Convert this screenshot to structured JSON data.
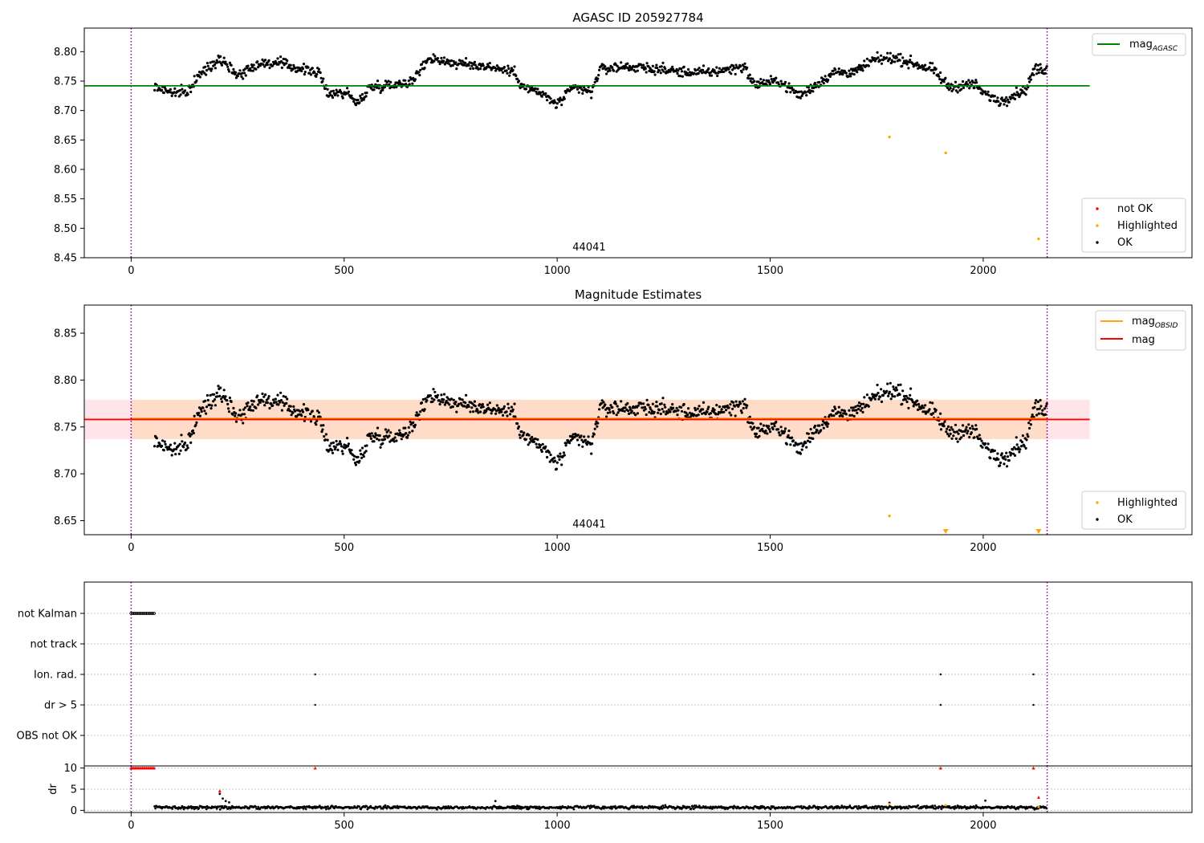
{
  "colors": {
    "ok": "#000000",
    "highlighted": "#ffa500",
    "not_ok": "#ff0000",
    "agasc_line": "#008000",
    "mag_line": "#ff0000",
    "obsid_line": "#ffa500",
    "obsid_band": "#ffdac2",
    "mag_band": "#ffe1e6",
    "obsid_boundary": "#800080",
    "grid": "#b0b0b0"
  },
  "chart_data": [
    {
      "id": "top",
      "type": "scatter",
      "title": "AGASC ID 205927784",
      "xlim": [
        -110,
        2490
      ],
      "ylim": [
        8.45,
        8.84
      ],
      "xticks": [
        0,
        500,
        1000,
        1500,
        2000
      ],
      "yticks": [
        8.45,
        8.5,
        8.55,
        8.6,
        8.65,
        8.7,
        8.75,
        8.8
      ],
      "ytick_labels": [
        "8.45",
        "8.50",
        "8.55",
        "8.60",
        "8.65",
        "8.70",
        "8.75",
        "8.80"
      ],
      "obsid_boundaries": [
        0,
        2150
      ],
      "obsid_label": {
        "text": "44041",
        "x": 1075
      },
      "hlines": [
        {
          "name": "mag_agasc",
          "y": 8.742,
          "x": [
            -110,
            2250
          ],
          "color": "#008000"
        }
      ],
      "legend_top": {
        "position": "upper right",
        "entries": [
          {
            "main": "mag",
            "sub": "AGASC",
            "color": "#008000",
            "kind": "line"
          }
        ]
      },
      "legend_bottom": {
        "position": "lower right",
        "entries": [
          {
            "label": "not OK",
            "color": "#ff0000",
            "kind": "point"
          },
          {
            "label": "Highlighted",
            "color": "#ffa500",
            "kind": "point"
          },
          {
            "label": "OK",
            "color": "#000000",
            "kind": "point"
          }
        ]
      },
      "highlighted_points": [
        [
          1780,
          8.655
        ],
        [
          1912,
          8.628
        ],
        [
          2130,
          8.482
        ]
      ],
      "ok_trend": [
        [
          55,
          8.74
        ],
        [
          100,
          8.73
        ],
        [
          130,
          8.73
        ],
        [
          160,
          8.76
        ],
        [
          210,
          8.79
        ],
        [
          250,
          8.76
        ],
        [
          300,
          8.78
        ],
        [
          350,
          8.78
        ],
        [
          400,
          8.77
        ],
        [
          440,
          8.765
        ],
        [
          460,
          8.73
        ],
        [
          510,
          8.73
        ],
        [
          530,
          8.71
        ],
        [
          560,
          8.74
        ],
        [
          620,
          8.745
        ],
        [
          660,
          8.75
        ],
        [
          700,
          8.79
        ],
        [
          760,
          8.78
        ],
        [
          840,
          8.775
        ],
        [
          900,
          8.765
        ],
        [
          920,
          8.74
        ],
        [
          960,
          8.73
        ],
        [
          1000,
          8.71
        ],
        [
          1040,
          8.74
        ],
        [
          1080,
          8.73
        ],
        [
          1100,
          8.77
        ],
        [
          1160,
          8.775
        ],
        [
          1240,
          8.77
        ],
        [
          1300,
          8.765
        ],
        [
          1360,
          8.765
        ],
        [
          1440,
          8.775
        ],
        [
          1460,
          8.745
        ],
        [
          1520,
          8.75
        ],
        [
          1570,
          8.725
        ],
        [
          1600,
          8.74
        ],
        [
          1650,
          8.765
        ],
        [
          1700,
          8.765
        ],
        [
          1740,
          8.785
        ],
        [
          1790,
          8.79
        ],
        [
          1880,
          8.77
        ],
        [
          1920,
          8.74
        ],
        [
          1980,
          8.745
        ],
        [
          2000,
          8.73
        ],
        [
          2040,
          8.715
        ],
        [
          2080,
          8.73
        ],
        [
          2100,
          8.735
        ],
        [
          2120,
          8.77
        ],
        [
          2150,
          8.77
        ]
      ]
    },
    {
      "id": "middle",
      "type": "scatter",
      "title": "Magnitude Estimates",
      "xlim": [
        -110,
        2490
      ],
      "ylim": [
        8.635,
        8.88
      ],
      "xticks": [
        0,
        500,
        1000,
        1500,
        2000
      ],
      "yticks": [
        8.65,
        8.7,
        8.75,
        8.8,
        8.85
      ],
      "ytick_labels": [
        "8.65",
        "8.70",
        "8.75",
        "8.80",
        "8.85"
      ],
      "obsid_boundaries": [
        0,
        2150
      ],
      "obsid_label": {
        "text": "44041",
        "x": 1075
      },
      "bands": [
        {
          "name": "mag_band",
          "y": [
            8.737,
            8.779
          ],
          "x": [
            -110,
            2250
          ],
          "color": "#ffe1e6"
        },
        {
          "name": "obsid_band",
          "y": [
            8.737,
            8.779
          ],
          "x": [
            0,
            2150
          ],
          "color": "#ffdac2"
        }
      ],
      "hlines": [
        {
          "name": "mag_obsid",
          "y": 8.759,
          "x": [
            0,
            2150
          ],
          "color": "#ffa500"
        },
        {
          "name": "mag",
          "y": 8.758,
          "x": [
            -110,
            2250
          ],
          "color": "#ff0000"
        }
      ],
      "legend_top": {
        "position": "upper right",
        "entries": [
          {
            "main": "mag",
            "sub": "OBSID",
            "color": "#ffa500",
            "kind": "line"
          },
          {
            "main": "mag",
            "sub": "",
            "color": "#ff0000",
            "kind": "line"
          }
        ]
      },
      "legend_bottom": {
        "position": "lower right",
        "entries": [
          {
            "label": "Highlighted",
            "color": "#ffa500",
            "kind": "point"
          },
          {
            "label": "OK",
            "color": "#000000",
            "kind": "point"
          }
        ]
      },
      "highlighted_points": [
        [
          1780,
          8.655
        ]
      ],
      "out_of_range_markers": [
        1912,
        2130
      ],
      "ok_trend": [
        [
          55,
          8.735
        ],
        [
          100,
          8.725
        ],
        [
          130,
          8.73
        ],
        [
          160,
          8.765
        ],
        [
          210,
          8.79
        ],
        [
          250,
          8.76
        ],
        [
          300,
          8.78
        ],
        [
          350,
          8.775
        ],
        [
          400,
          8.765
        ],
        [
          440,
          8.76
        ],
        [
          460,
          8.73
        ],
        [
          510,
          8.73
        ],
        [
          530,
          8.71
        ],
        [
          560,
          8.74
        ],
        [
          620,
          8.74
        ],
        [
          660,
          8.75
        ],
        [
          700,
          8.785
        ],
        [
          760,
          8.775
        ],
        [
          840,
          8.77
        ],
        [
          900,
          8.765
        ],
        [
          920,
          8.74
        ],
        [
          960,
          8.73
        ],
        [
          1000,
          8.71
        ],
        [
          1040,
          8.74
        ],
        [
          1080,
          8.73
        ],
        [
          1100,
          8.77
        ],
        [
          1160,
          8.77
        ],
        [
          1240,
          8.77
        ],
        [
          1300,
          8.765
        ],
        [
          1360,
          8.765
        ],
        [
          1440,
          8.775
        ],
        [
          1460,
          8.745
        ],
        [
          1520,
          8.75
        ],
        [
          1570,
          8.725
        ],
        [
          1600,
          8.745
        ],
        [
          1650,
          8.765
        ],
        [
          1700,
          8.765
        ],
        [
          1740,
          8.78
        ],
        [
          1790,
          8.79
        ],
        [
          1880,
          8.765
        ],
        [
          1920,
          8.745
        ],
        [
          1980,
          8.745
        ],
        [
          2000,
          8.73
        ],
        [
          2040,
          8.715
        ],
        [
          2080,
          8.73
        ],
        [
          2100,
          8.735
        ],
        [
          2120,
          8.77
        ],
        [
          2150,
          8.77
        ]
      ]
    },
    {
      "id": "flags",
      "type": "scatter",
      "xlim": [
        -110,
        2490
      ],
      "xticks": [],
      "categories": [
        "not Kalman",
        "not track",
        "Ion. rad.",
        "dr > 5",
        "OBS not OK"
      ],
      "obsid_boundaries": [
        0,
        2150
      ],
      "points": [
        {
          "category": "not Kalman",
          "x_range": [
            0,
            55
          ],
          "step": 3
        },
        {
          "category": "Ion. rad.",
          "x": [
            432,
            1900,
            2118
          ]
        },
        {
          "category": "dr > 5",
          "x": [
            432,
            1900,
            2118
          ]
        }
      ]
    },
    {
      "id": "dr",
      "type": "scatter",
      "xlim": [
        -110,
        2490
      ],
      "ylim": [
        -0.5,
        10.5
      ],
      "xticks": [
        0,
        500,
        1000,
        1500,
        2000
      ],
      "yticks": [
        0,
        5,
        10
      ],
      "ytick_labels": [
        "0",
        "5",
        "10"
      ],
      "ylabel": "dr",
      "obsid_boundaries": [
        0,
        2150
      ],
      "not_ok_points": [
        [
          432,
          10
        ],
        [
          1900,
          10
        ],
        [
          2118,
          10
        ],
        [
          2130,
          3.1
        ],
        [
          208,
          4.6
        ]
      ],
      "not_ok_range": {
        "x_range": [
          0,
          55
        ],
        "step": 3,
        "y": 10
      },
      "highlighted_points": [
        [
          1780,
          1.5
        ],
        [
          1912,
          1.2
        ],
        [
          2130,
          0.8
        ]
      ],
      "ok_baseline": {
        "x_range": [
          55,
          2150
        ],
        "level": 0.7,
        "spikes": [
          [
            208,
            3.9
          ],
          [
            215,
            2.8
          ],
          [
            222,
            2.2
          ],
          [
            230,
            1.9
          ],
          [
            855,
            2.2
          ],
          [
            2005,
            2.3
          ],
          [
            1780,
            1.8
          ]
        ]
      }
    }
  ]
}
